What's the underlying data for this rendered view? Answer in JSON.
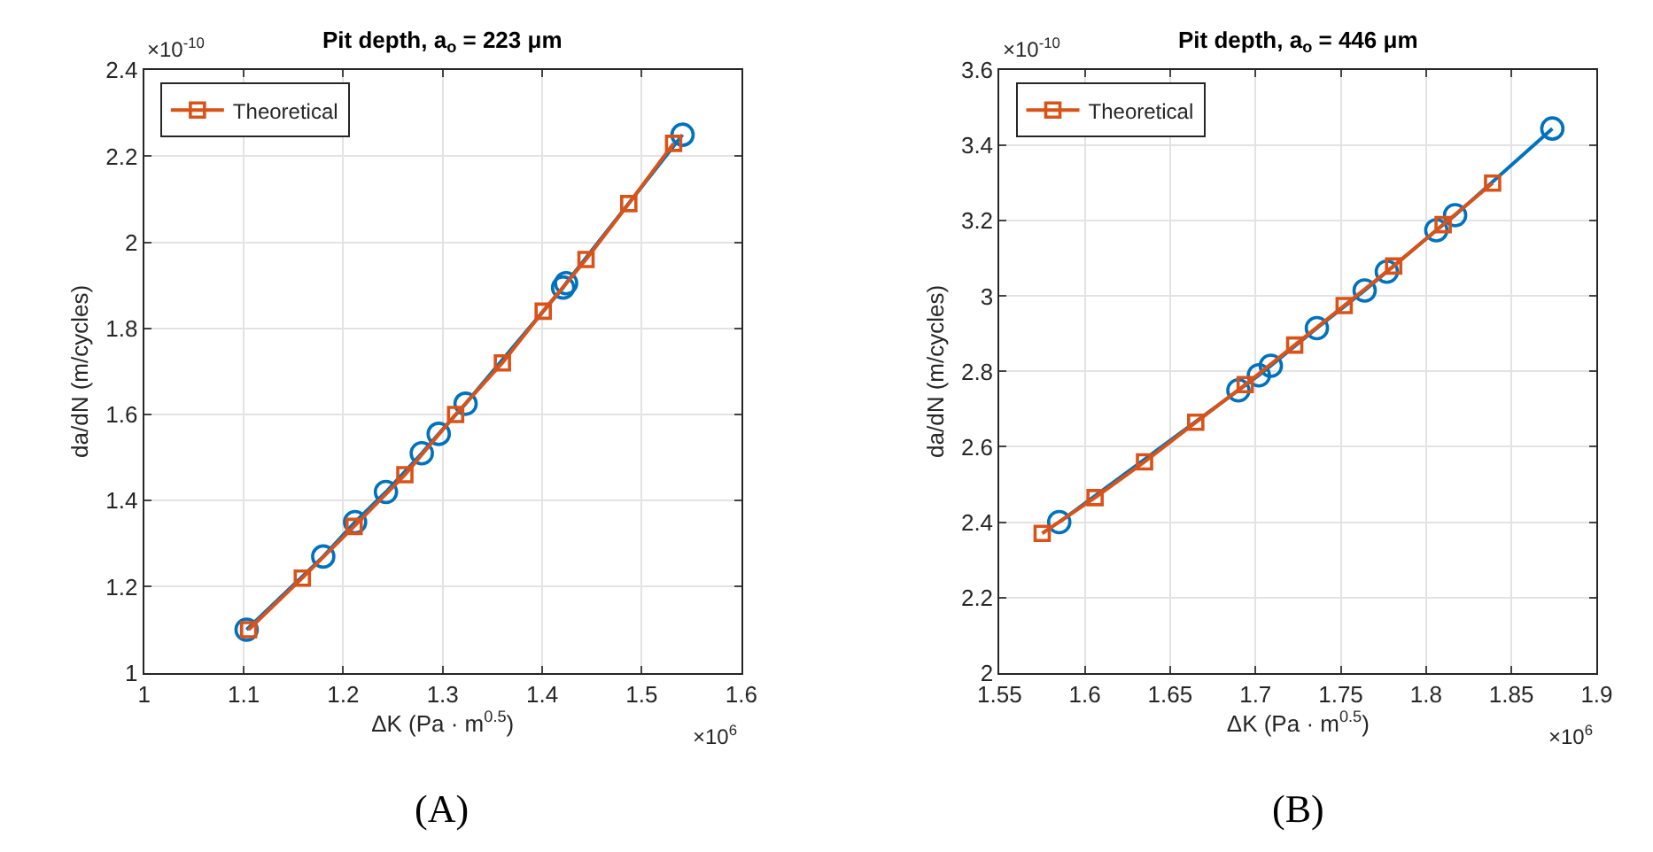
{
  "chart_data": [
    {
      "type": "line",
      "title": "Pit depth, a$_{o}$ = 223 μm",
      "xlabel": "ΔK (Pa · m$^{0.5}$)",
      "ylabel": "da/dN (m/cycles)",
      "annotations": [
        "×10$^{-10}$",
        "×10$^{6}$",
        "(A)"
      ],
      "xlim": [
        1,
        1.6
      ],
      "xticks": [
        1,
        1.1,
        1.2,
        1.3,
        1.4,
        1.5,
        1.6
      ],
      "ylim": [
        1,
        2.4
      ],
      "yticks": [
        1,
        1.2,
        1.4,
        1.6,
        1.8,
        2,
        2.2,
        2.4
      ],
      "grid": true,
      "legend": "top left",
      "series": [
        {
          "color": "#0072bd",
          "marker": "circle",
          "x": [
            1.103,
            1.18,
            1.212,
            1.243,
            1.279,
            1.296,
            1.323,
            1.421,
            1.424,
            1.541
          ],
          "values": [
            1.1,
            1.27,
            1.35,
            1.42,
            1.51,
            1.555,
            1.625,
            1.895,
            1.905,
            2.25
          ]
        },
        {
          "name": "Theoretical",
          "color": "#d95319",
          "marker": "square",
          "x": [
            1.105,
            1.159,
            1.211,
            1.262,
            1.313,
            1.36,
            1.401,
            1.444,
            1.487,
            1.532
          ],
          "values": [
            1.1,
            1.22,
            1.34,
            1.46,
            1.6,
            1.72,
            1.84,
            1.96,
            2.09,
            2.23
          ]
        }
      ]
    },
    {
      "type": "line",
      "title": "Pit depth, a$_{o}$ = 446 μm",
      "xlabel": "ΔK (Pa · m$^{0.5}$)",
      "ylabel": "da/dN (m/cycles)",
      "annotations": [
        "×10$^{-10}$",
        "×10$^{6}$",
        "(B)"
      ],
      "xlim": [
        1.55,
        1.9
      ],
      "xticks": [
        1.55,
        1.6,
        1.65,
        1.7,
        1.75,
        1.8,
        1.85,
        1.9
      ],
      "ylim": [
        2,
        3.6
      ],
      "yticks": [
        2,
        2.2,
        2.4,
        2.6,
        2.8,
        3,
        3.2,
        3.4,
        3.6
      ],
      "grid": true,
      "legend": "top left",
      "series": [
        {
          "color": "#0072bd",
          "marker": "circle",
          "x": [
            1.585,
            1.69,
            1.702,
            1.709,
            1.736,
            1.764,
            1.777,
            1.806,
            1.817,
            1.874
          ],
          "values": [
            2.4,
            2.75,
            2.79,
            2.815,
            2.915,
            3.015,
            3.065,
            3.175,
            3.215,
            3.445
          ]
        },
        {
          "name": "Theoretical",
          "color": "#d95319",
          "marker": "square",
          "x": [
            1.575,
            1.606,
            1.635,
            1.665,
            1.694,
            1.723,
            1.752,
            1.781,
            1.81,
            1.839
          ],
          "values": [
            2.37,
            2.465,
            2.56,
            2.665,
            2.765,
            2.87,
            2.975,
            3.08,
            3.19,
            3.3
          ]
        }
      ]
    }
  ]
}
